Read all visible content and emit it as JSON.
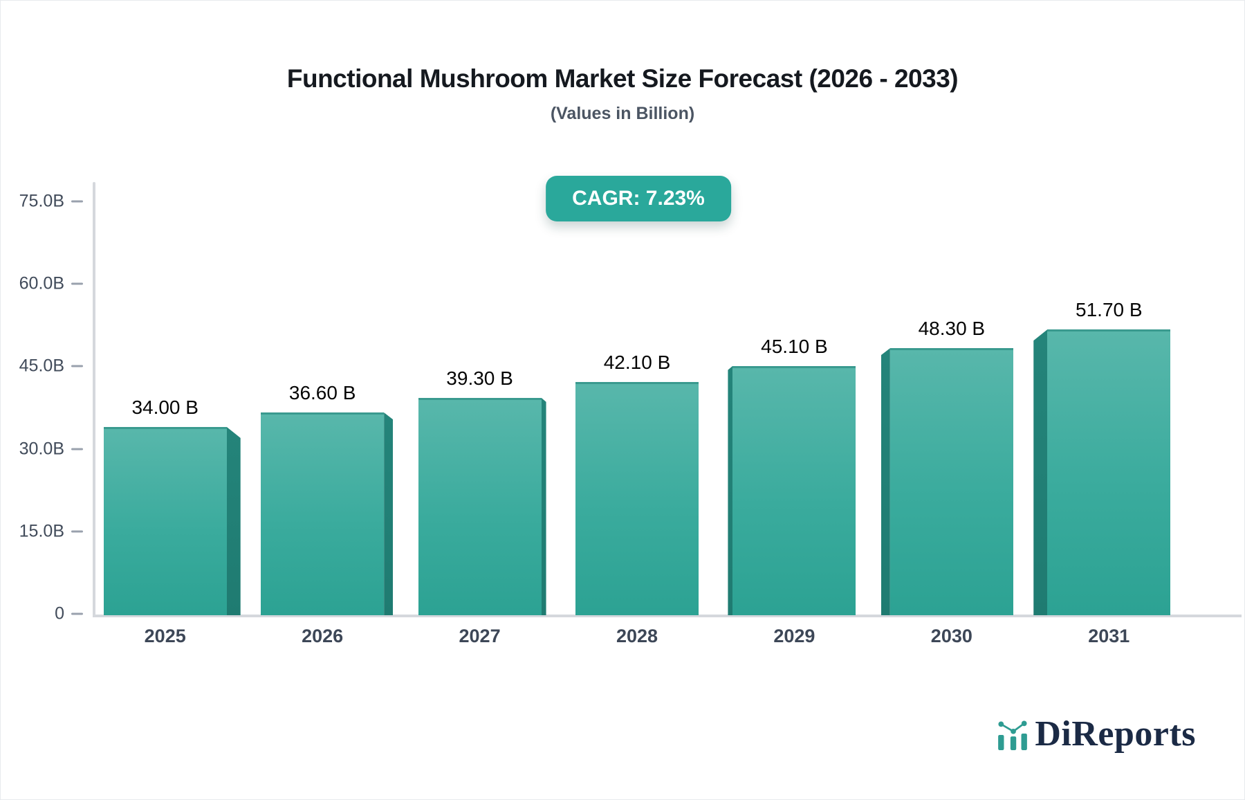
{
  "header": {
    "title": "Functional Mushroom Market Size Forecast (2026 - 2033)",
    "subtitle": "(Values in Billion)"
  },
  "badge": {
    "label": "CAGR: 7.23%",
    "background": "#2aa89b",
    "text_color": "#ffffff"
  },
  "chart_data": {
    "type": "bar",
    "title": "Functional Mushroom Market Size Forecast (2026 - 2033)",
    "subtitle": "(Values in Billion)",
    "categories": [
      "2025",
      "2026",
      "2027",
      "2028",
      "2029",
      "2030",
      "2031"
    ],
    "values": [
      34.0,
      36.6,
      39.3,
      42.1,
      45.1,
      48.3,
      51.7
    ],
    "value_labels": [
      "34.00 B",
      "36.60 B",
      "39.30 B",
      "42.10 B",
      "45.10 B",
      "48.30 B",
      "51.70 B"
    ],
    "cagr_label": "CAGR: 7.23%",
    "xlabel": "",
    "ylabel": "",
    "ylim": [
      0,
      75
    ],
    "yticks": [
      {
        "label": "75.0B",
        "value": 75
      },
      {
        "label": "60.0B",
        "value": 60
      },
      {
        "label": "45.0B",
        "value": 45
      },
      {
        "label": "30.0B",
        "value": 30
      },
      {
        "label": "15.0B",
        "value": 15
      },
      {
        "label": "0",
        "value": 0
      }
    ],
    "grid": false,
    "legend": false,
    "bar_style": "3d-extruded",
    "colors": {
      "bar_face_top": "#58b7ab",
      "bar_face_bottom": "#2ca293",
      "bar_side": "#1f7b71",
      "bar_top_edge": "#3a9a8f",
      "axis_line": "#d5d8dd",
      "tick_text": "#414b5a",
      "category_text": "#3d4757",
      "value_text": "#050505"
    }
  },
  "logo": {
    "text": "DiReports",
    "text_color": "#1b2a45",
    "icon": "bar-chart-logo-icon",
    "icon_color": "#2e9c92"
  }
}
